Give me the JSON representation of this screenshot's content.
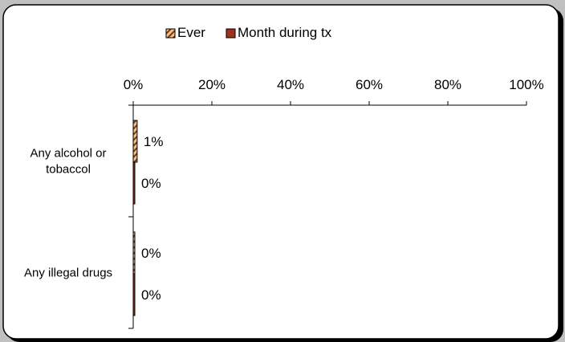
{
  "chart_data": {
    "type": "bar",
    "orientation": "horizontal",
    "categories": [
      "Any alcohol or tobaccol",
      "Any illegal drugs"
    ],
    "category_label_lines": [
      [
        "Any alcohol or",
        "tobaccol"
      ],
      [
        "Any illegal drugs"
      ]
    ],
    "series": [
      {
        "name": "Ever",
        "values": [
          1,
          0
        ],
        "labels": [
          "1%",
          "0%"
        ],
        "pattern": "diagonal-hatch",
        "color": "#f4c08a",
        "stripe_color": "#7a3a10"
      },
      {
        "name": "Month during tx",
        "values": [
          0,
          0
        ],
        "labels": [
          "0%",
          "0%"
        ],
        "pattern": "solid",
        "color": "#a0301a"
      }
    ],
    "xlim": [
      0,
      100
    ],
    "x_ticks": [
      "0%",
      "20%",
      "40%",
      "60%",
      "80%",
      "100%"
    ],
    "legend_position": "top",
    "grid": false,
    "colors": {
      "page_background": "#c0c0c0",
      "panel_background": "#ffffff",
      "panel_border": "#000000",
      "axis": "#000000"
    }
  }
}
